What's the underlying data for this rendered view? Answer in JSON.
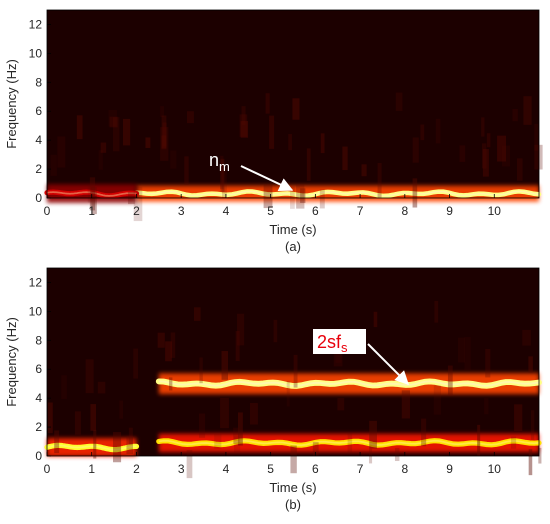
{
  "chart_data": [
    {
      "type": "heatmap",
      "subtitle": "(a)",
      "xlabel": "Time (s)",
      "ylabel": "Frequency (Hz)",
      "xlim": [
        0,
        11
      ],
      "ylim": [
        0,
        13
      ],
      "xticks": [
        "0",
        "1",
        "2",
        "3",
        "4",
        "5",
        "6",
        "7",
        "8",
        "9",
        "10"
      ],
      "yticks": [
        "0",
        "2",
        "4",
        "6",
        "8",
        "10",
        "12"
      ],
      "colormap": "hot",
      "background_color": "#1c0000",
      "grid": false,
      "bands": [
        {
          "t_start": 2.0,
          "t_end": 11.0,
          "freq": 0.3,
          "intensity": 0.95,
          "width_hz": 0.35
        },
        {
          "t_start": 0.0,
          "t_end": 2.0,
          "freq": 0.3,
          "intensity": 0.35,
          "width_hz": 0.4
        }
      ],
      "annotation": {
        "text": "n",
        "subscript": "m",
        "color": "#ffffff",
        "arrow_to": [
          5.5,
          0.4
        ]
      }
    },
    {
      "type": "heatmap",
      "subtitle": "(b)",
      "xlabel": "Time (s)",
      "ylabel": "Frequency (Hz)",
      "xlim": [
        0,
        11
      ],
      "ylim": [
        0,
        13
      ],
      "xticks": [
        "0",
        "1",
        "2",
        "3",
        "4",
        "5",
        "6",
        "7",
        "8",
        "9",
        "10"
      ],
      "yticks": [
        "0",
        "2",
        "4",
        "6",
        "8",
        "10",
        "12"
      ],
      "colormap": "hot",
      "background_color": "#1c0000",
      "grid": false,
      "bands": [
        {
          "t_start": 0.0,
          "t_end": 2.0,
          "freq": 0.6,
          "intensity": 0.85,
          "width_hz": 0.4
        },
        {
          "t_start": 2.5,
          "t_end": 11.0,
          "freq": 0.9,
          "intensity": 0.8,
          "width_hz": 0.4
        },
        {
          "t_start": 2.5,
          "t_end": 11.0,
          "freq": 5.0,
          "intensity": 0.95,
          "width_hz": 0.45
        }
      ],
      "annotation": {
        "text": "2sf",
        "subscript": "s",
        "color": "#e8000b",
        "box_color": "#ffffff",
        "arrow_to": [
          8.2,
          4.9
        ]
      }
    }
  ]
}
